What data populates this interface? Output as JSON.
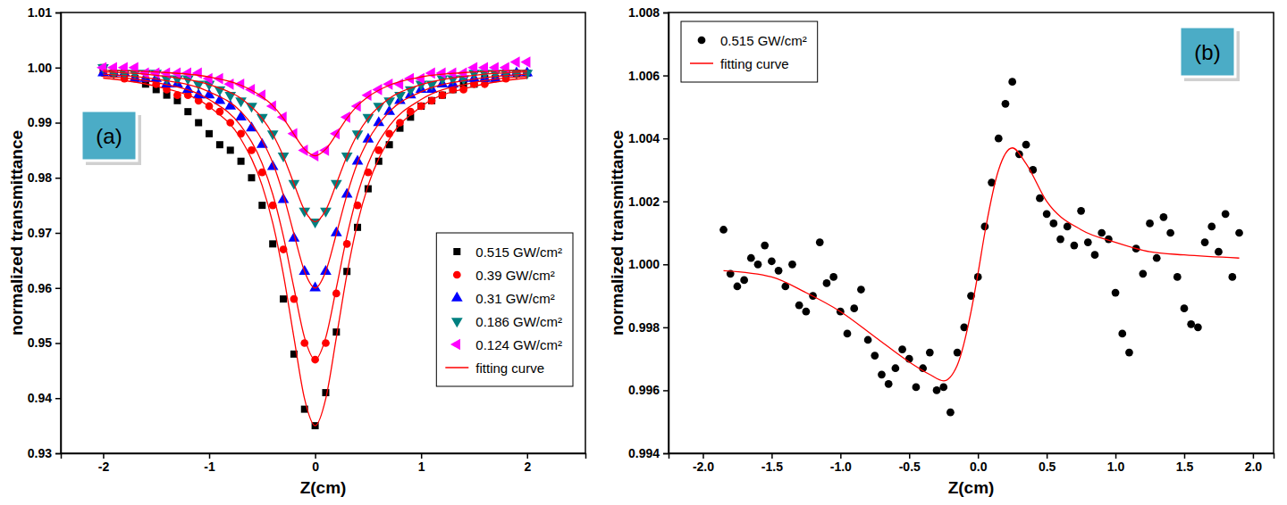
{
  "chart_data": [
    {
      "type": "scatter",
      "panel_label": "(a)",
      "x_label": "Z(cm)",
      "y_label": "normalized transmittance",
      "xlim": [
        -2.4,
        2.55
      ],
      "xticks": [
        -2,
        -1,
        0,
        1,
        2
      ],
      "ylim": [
        0.93,
        1.01
      ],
      "yticks": [
        0.93,
        0.94,
        0.95,
        0.96,
        0.97,
        0.98,
        0.99,
        {
          "value": 1,
          "label": "1.00"
        },
        1.01
      ],
      "legend": "lower right",
      "x": [
        -2,
        -1.9,
        -1.8,
        -1.7,
        -1.6,
        -1.5,
        -1.4,
        -1.3,
        -1.2,
        -1.1,
        -1,
        -0.9,
        -0.8,
        -0.7,
        -0.6,
        -0.5,
        -0.4,
        -0.3,
        -0.2,
        -0.1,
        0,
        0.1,
        0.2,
        0.3,
        0.4,
        0.5,
        0.6,
        0.7,
        0.8,
        0.9,
        1,
        1.1,
        1.2,
        1.3,
        1.4,
        1.5,
        1.6,
        1.7,
        1.8,
        1.9,
        2
      ],
      "series": [
        {
          "name": "0.515 GW/cm²",
          "type": "scatter",
          "marker": "square",
          "color": "#000000",
          "values": [
            1,
            0.999,
            0.999,
            0.998,
            0.997,
            0.996,
            0.995,
            0.994,
            0.992,
            0.99,
            0.988,
            0.986,
            0.985,
            0.983,
            0.98,
            0.975,
            0.968,
            0.958,
            0.948,
            0.938,
            0.935,
            0.941,
            0.952,
            0.963,
            0.971,
            0.978,
            0.983,
            0.986,
            0.989,
            0.991,
            0.993,
            0.994,
            0.995,
            0.996,
            0.997,
            0.997,
            0.998,
            0.998,
            0.999,
            0.999,
            0.999
          ]
        },
        {
          "name": "0.39 GW/cm²",
          "type": "scatter",
          "marker": "circle",
          "color": "#ff0000",
          "values": [
            0.999,
            0.999,
            0.998,
            0.998,
            0.998,
            0.997,
            0.996,
            0.995,
            0.995,
            0.994,
            0.993,
            0.992,
            0.99,
            0.988,
            0.985,
            0.981,
            0.975,
            0.967,
            0.958,
            0.95,
            0.947,
            0.95,
            0.959,
            0.968,
            0.975,
            0.981,
            0.985,
            0.988,
            0.99,
            0.992,
            0.993,
            0.994,
            0.995,
            0.996,
            0.996,
            0.997,
            0.997,
            0.998,
            0.998,
            0.999,
            0.999
          ]
        },
        {
          "name": "0.31 GW/cm²",
          "type": "scatter",
          "marker": "triangle-up",
          "color": "#0000ff",
          "values": [
            0.999,
            0.999,
            0.999,
            0.998,
            0.998,
            0.998,
            0.997,
            0.997,
            0.996,
            0.995,
            0.995,
            0.994,
            0.993,
            0.991,
            0.989,
            0.986,
            0.982,
            0.976,
            0.969,
            0.963,
            0.96,
            0.963,
            0.97,
            0.977,
            0.983,
            0.987,
            0.99,
            0.992,
            0.994,
            0.995,
            0.996,
            0.996,
            0.997,
            0.997,
            0.998,
            0.998,
            0.998,
            0.998,
            0.999,
            0.999,
            0.999
          ]
        },
        {
          "name": "0.186 GW/cm²",
          "type": "scatter",
          "marker": "triangle-down",
          "color": "#008080",
          "values": [
            1,
            0.999,
            0.999,
            0.999,
            0.999,
            0.999,
            0.998,
            0.998,
            0.998,
            0.997,
            0.997,
            0.996,
            0.995,
            0.994,
            0.993,
            0.991,
            0.988,
            0.984,
            0.979,
            0.974,
            0.972,
            0.974,
            0.979,
            0.984,
            0.988,
            0.991,
            0.993,
            0.994,
            0.995,
            0.996,
            0.997,
            0.997,
            0.998,
            0.998,
            0.998,
            0.999,
            0.999,
            0.999,
            0.999,
            0.999,
            0.999
          ]
        },
        {
          "name": "0.124 GW/cm²",
          "type": "scatter",
          "marker": "triangle-left",
          "color": "#ff00ff",
          "values": [
            1,
            1,
            1,
            1,
            0.999,
            0.999,
            0.999,
            0.999,
            0.999,
            0.999,
            0.998,
            0.998,
            0.997,
            0.997,
            0.996,
            0.995,
            0.993,
            0.991,
            0.988,
            0.985,
            0.984,
            0.985,
            0.988,
            0.991,
            0.993,
            0.995,
            0.996,
            0.997,
            0.997,
            0.998,
            0.998,
            0.999,
            0.999,
            0.999,
            0.999,
            1,
            1,
            1,
            1,
            1.001,
            1.001
          ]
        },
        {
          "name": "fitting curve",
          "type": "line",
          "line_style": "solid",
          "color": "#ff0000",
          "x": [
            -2,
            -1.5,
            -1,
            -0.7,
            -0.5,
            -0.4,
            -0.3,
            -0.2,
            -0.1,
            0,
            0.1,
            0.2,
            0.3,
            0.4,
            0.5,
            0.7,
            1,
            1.5,
            2,
            null,
            -2,
            -1.5,
            -1,
            -0.7,
            -0.5,
            -0.4,
            -0.3,
            -0.2,
            -0.1,
            0,
            0.1,
            0.2,
            0.3,
            0.4,
            0.5,
            0.7,
            1,
            1.5,
            2,
            null,
            -2,
            -1.5,
            -1,
            -0.7,
            -0.5,
            -0.4,
            -0.3,
            -0.2,
            -0.1,
            0,
            0.1,
            0.2,
            0.3,
            0.4,
            0.5,
            0.7,
            1,
            1.5,
            2,
            null,
            -2,
            -1.5,
            -1,
            -0.7,
            -0.5,
            -0.4,
            -0.3,
            -0.2,
            -0.1,
            0,
            0.1,
            0.2,
            0.3,
            0.4,
            0.5,
            0.7,
            1,
            1.5,
            2,
            null,
            -2,
            -1.5,
            -1,
            -0.7,
            -0.5,
            -0.4,
            -0.3,
            -0.2,
            -0.1,
            0,
            0.1,
            0.2,
            0.3,
            0.4,
            0.5,
            0.7,
            1,
            1.5,
            2
          ],
          "values": [
            0.9981,
            0.9966,
            0.9929,
            0.987,
            0.9786,
            0.9718,
            0.9625,
            0.951,
            0.9399,
            0.935,
            0.9399,
            0.951,
            0.9625,
            0.9718,
            0.9786,
            0.987,
            0.9929,
            0.9966,
            0.9981,
            null,
            0.9984,
            0.9973,
            0.9942,
            0.9894,
            0.9826,
            0.977,
            0.9694,
            0.96,
            0.951,
            0.947,
            0.951,
            0.96,
            0.9694,
            0.977,
            0.9826,
            0.9894,
            0.9942,
            0.9973,
            0.9984,
            null,
            0.9988,
            0.9979,
            0.9956,
            0.992,
            0.9868,
            0.9827,
            0.9769,
            0.9698,
            0.963,
            0.96,
            0.963,
            0.9698,
            0.9769,
            0.9827,
            0.9868,
            0.992,
            0.9956,
            0.9979,
            0.9988,
            null,
            0.9992,
            0.9986,
            0.9969,
            0.9944,
            0.9908,
            0.9879,
            0.9839,
            0.9789,
            0.9741,
            0.972,
            0.9741,
            0.9789,
            0.9839,
            0.9879,
            0.9908,
            0.9944,
            0.9969,
            0.9986,
            0.9992,
            null,
            0.9995,
            0.9992,
            0.9983,
            0.9968,
            0.9947,
            0.9931,
            0.9908,
            0.9879,
            0.9852,
            0.984,
            0.9852,
            0.9879,
            0.9908,
            0.9931,
            0.9947,
            0.9968,
            0.9983,
            0.9992,
            0.9995
          ]
        }
      ]
    },
    {
      "type": "scatter",
      "panel_label": "(b)",
      "x_label": "Z(cm)",
      "y_label": "normalized transmittance",
      "xlim": [
        -2.25,
        2.15
      ],
      "xticks": [
        {
          "value": -2,
          "label": "-2.0"
        },
        -1.5,
        {
          "value": -1,
          "label": "-1.0"
        },
        -0.5,
        {
          "value": 0,
          "label": "0.0"
        },
        0.5,
        {
          "value": 1,
          "label": "1.0"
        },
        1.5,
        {
          "value": 2,
          "label": "2.0"
        }
      ],
      "ylim": [
        0.994,
        1.008
      ],
      "yticks": [
        0.994,
        0.996,
        0.998,
        {
          "value": 1,
          "label": "1.000"
        },
        1.002,
        1.004,
        1.006,
        1.008
      ],
      "legend": "upper left",
      "x": [
        -1.85,
        -1.8,
        -1.75,
        -1.7,
        -1.65,
        -1.6,
        -1.55,
        -1.5,
        -1.45,
        -1.4,
        -1.35,
        -1.3,
        -1.25,
        -1.2,
        -1.15,
        -1.1,
        -1.05,
        -1,
        -0.95,
        -0.9,
        -0.85,
        -0.8,
        -0.75,
        -0.7,
        -0.65,
        -0.6,
        -0.55,
        -0.5,
        -0.45,
        -0.4,
        -0.35,
        -0.3,
        -0.25,
        -0.2,
        -0.15,
        -0.1,
        -0.05,
        0,
        0.05,
        0.1,
        0.15,
        0.2,
        0.25,
        0.3,
        0.35,
        0.4,
        0.45,
        0.5,
        0.55,
        0.6,
        0.65,
        0.7,
        0.75,
        0.8,
        0.85,
        0.9,
        0.95,
        1,
        1.05,
        1.1,
        1.15,
        1.2,
        1.25,
        1.3,
        1.35,
        1.4,
        1.45,
        1.5,
        1.55,
        1.6,
        1.65,
        1.7,
        1.75,
        1.8,
        1.85,
        1.9
      ],
      "series": [
        {
          "name": "0.515 GW/cm²",
          "type": "scatter",
          "marker": "circle",
          "color": "#000000",
          "values": [
            1.0011,
            0.9997,
            0.9993,
            0.9995,
            1.0002,
            1,
            1.0006,
            1.0001,
            0.9998,
            0.9993,
            1,
            0.9987,
            0.9985,
            0.999,
            1.0007,
            0.9994,
            0.9996,
            0.9985,
            0.9978,
            0.9986,
            0.9992,
            0.9976,
            0.9971,
            0.9965,
            0.9962,
            0.9967,
            0.9973,
            0.997,
            0.9961,
            0.9967,
            0.9972,
            0.996,
            0.9961,
            0.9953,
            0.9972,
            0.998,
            0.999,
            0.9996,
            1.0012,
            1.0026,
            1.004,
            1.0051,
            1.0058,
            1.0035,
            1.0038,
            1.003,
            1.0021,
            1.0016,
            1.0013,
            1.0008,
            1.0012,
            1.0006,
            1.0017,
            1.0007,
            1.0003,
            1.001,
            1.0008,
            0.9991,
            0.9978,
            0.9972,
            1.0005,
            0.9997,
            1.0013,
            1.0002,
            1.0015,
            1.001,
            0.9996,
            0.9986,
            0.9981,
            0.998,
            1.0007,
            1.0012,
            1.0004,
            1.0016,
            0.9996,
            1.001
          ]
        },
        {
          "name": "fitting curve",
          "type": "line",
          "line_style": "solid",
          "color": "#ff0000",
          "x": [
            -1.85,
            -1.5,
            -1.25,
            -1,
            -0.75,
            -0.5,
            -0.35,
            -0.25,
            -0.15,
            -0.05,
            0,
            0.05,
            0.15,
            0.25,
            0.35,
            0.5,
            0.75,
            1,
            1.25,
            1.5,
            1.9
          ],
          "values": [
            0.9998,
            0.9996,
            0.9991,
            0.9985,
            0.9977,
            0.9969,
            0.9965,
            0.9963,
            0.9968,
            0.9985,
            0.9997,
            1.001,
            1.003,
            1.0037,
            1.0032,
            1.002,
            1.0011,
            1.0007,
            1.0004,
            1.0003,
            1.0002
          ]
        }
      ]
    }
  ]
}
